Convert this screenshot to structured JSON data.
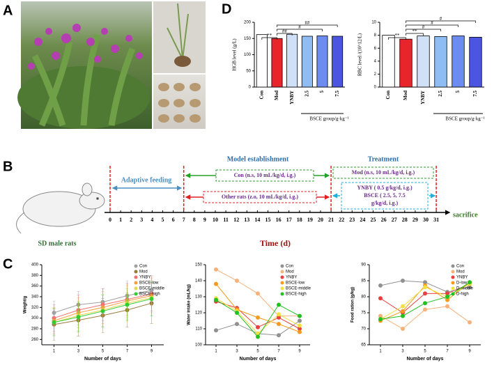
{
  "panel_labels": [
    "A",
    "B",
    "C",
    "D"
  ],
  "timeline": {
    "ticks": [
      0,
      1,
      2,
      3,
      4,
      5,
      6,
      7,
      8,
      9,
      10,
      11,
      12,
      13,
      14,
      15,
      16,
      17,
      18,
      19,
      20,
      21,
      22,
      23,
      24,
      25,
      26,
      27,
      28,
      29,
      30,
      31
    ],
    "axis_label": "Time (d)",
    "end_label": "sacrifice",
    "subject": "SD male rats",
    "adaptive": "Adaptive feeding",
    "model": "Model establishment",
    "treatment": "Treatment",
    "con": "Con (n.s, 10 mL/kg/d, i.g.)",
    "other": "Other rats (z.o, 10 mL/kg/d, i.g.)",
    "mod": "Mod (n.s, 10 mL/kg/d, i.g.)",
    "treatment_lines": [
      "YNBY ( 0.5 g/kg/d, i.g.)",
      "BSCE ( 2.5, 5, 7.5",
      "g/kg/d, i.g.)"
    ]
  },
  "chart_data": [
    {
      "type": "bar",
      "ylabel": "HGB level (g/L)",
      "group_label": "BSCE group/g·kg⁻¹",
      "categories": [
        "Con",
        "Mod",
        "YNBY",
        "2.5",
        "5",
        "7.5"
      ],
      "values": [
        162,
        150,
        163,
        157,
        158,
        157
      ],
      "colors": [
        "#ffffff",
        "#e8252a",
        "#cfe0f7",
        "#8fbcf2",
        "#6d8cf0",
        "#4b55e0"
      ],
      "ylim": [
        0,
        200
      ],
      "yticks": [
        0,
        50,
        100,
        150,
        200
      ],
      "annotations": [
        "**",
        "##",
        "#",
        "##"
      ]
    },
    {
      "type": "bar",
      "ylabel": "RBC level /(10^12/L)",
      "group_label": "BSCE group/g·kg⁻¹",
      "categories": [
        "Con",
        "Mod",
        "YNBY",
        "2.5",
        "5",
        "7.5"
      ],
      "values": [
        8.0,
        7.4,
        7.9,
        7.8,
        7.9,
        7.7
      ],
      "colors": [
        "#ffffff",
        "#e8252a",
        "#cfe0f7",
        "#8fbcf2",
        "#6d8cf0",
        "#4b55e0"
      ],
      "ylim": [
        0,
        10
      ],
      "yticks": [
        0,
        2,
        4,
        6,
        8,
        10
      ],
      "annotations": [
        "**",
        "**",
        "#",
        "#",
        "#"
      ]
    },
    {
      "type": "line",
      "ylabel": "Weight/g",
      "xlabel": "Number of days",
      "x": [
        1,
        3,
        5,
        7,
        9
      ],
      "xlim": [
        0,
        10
      ],
      "xticks": [
        1,
        3,
        5,
        7,
        9
      ],
      "ylim": [
        250,
        400
      ],
      "yticks": [
        260,
        280,
        300,
        320,
        340,
        360,
        380,
        400
      ],
      "series": [
        {
          "name": "Con",
          "color": "#a0a0a0",
          "values": [
            310,
            325,
            330,
            342,
            352
          ],
          "errors": [
            22,
            25,
            25,
            28,
            28
          ]
        },
        {
          "name": "Mod",
          "color": "#9b7b3a",
          "values": [
            288,
            296,
            305,
            315,
            328
          ],
          "errors": [
            30,
            30,
            32,
            32,
            38
          ]
        },
        {
          "name": "YNBY",
          "color": "#f07070",
          "values": [
            300,
            315,
            325,
            335,
            345
          ],
          "errors": [
            25,
            28,
            30,
            30,
            32
          ]
        },
        {
          "name": "BSCE-low",
          "color": "#f5a040",
          "values": [
            295,
            310,
            320,
            332,
            342
          ],
          "errors": [
            25,
            28,
            30,
            30,
            32
          ]
        },
        {
          "name": "BSCE-middle",
          "color": "#e8d850",
          "values": [
            292,
            305,
            315,
            328,
            338
          ],
          "errors": [
            25,
            28,
            30,
            30,
            32
          ]
        },
        {
          "name": "BSCE-high",
          "color": "#30cc30",
          "values": [
            292,
            302,
            313,
            325,
            336
          ],
          "errors": [
            25,
            28,
            30,
            30,
            32
          ]
        }
      ]
    },
    {
      "type": "line",
      "ylabel": "Water intake (mL/kg)",
      "xlabel": "Number of days",
      "x": [
        1,
        3,
        5,
        7,
        9
      ],
      "xlim": [
        0,
        10
      ],
      "xticks": [
        1,
        3,
        5,
        7,
        9
      ],
      "ylim": [
        100,
        150
      ],
      "yticks": [
        100,
        110,
        120,
        130,
        140,
        150
      ],
      "series": [
        {
          "name": "Con",
          "color": "#909090",
          "values": [
            109,
            113,
            107,
            106,
            115
          ]
        },
        {
          "name": "Mod",
          "color": "#f5b27a",
          "values": [
            147,
            140,
            132,
            118,
            118
          ]
        },
        {
          "name": "YNBY",
          "color": "#e84040",
          "values": [
            127,
            123,
            111,
            117,
            110
          ]
        },
        {
          "name": "BSCE-low",
          "color": "#f59a20",
          "values": [
            138,
            122,
            117,
            113,
            108
          ]
        },
        {
          "name": "BSCE-middle",
          "color": "#f0e040",
          "values": [
            129,
            121,
            107,
            119,
            112
          ]
        },
        {
          "name": "BSCE-high",
          "color": "#22c022",
          "values": [
            128,
            120,
            105,
            125,
            118
          ]
        }
      ]
    },
    {
      "type": "line",
      "ylabel": "Food ration (g/kg)",
      "xlabel": "Number of days",
      "x": [
        1,
        3,
        5,
        7,
        9
      ],
      "xlim": [
        0,
        10
      ],
      "xticks": [
        1,
        3,
        5,
        7,
        9
      ],
      "ylim": [
        65,
        90
      ],
      "yticks": [
        65,
        70,
        75,
        80,
        85,
        90
      ],
      "series": [
        {
          "name": "Con",
          "color": "#909090",
          "values": [
            83.5,
            85,
            84.5,
            81.5,
            83
          ]
        },
        {
          "name": "Mod",
          "color": "#f5b27a",
          "values": [
            74,
            70,
            76,
            77,
            72
          ]
        },
        {
          "name": "YNBY",
          "color": "#e84040",
          "values": [
            79.5,
            75,
            81,
            81,
            84
          ]
        },
        {
          "name": "D-low",
          "color": "#f59a20",
          "values": [
            72.5,
            75.5,
            83.5,
            79,
            84.5
          ]
        },
        {
          "name": "D-middle",
          "color": "#f0e040",
          "values": [
            73,
            77,
            83,
            80,
            84
          ]
        },
        {
          "name": "D-high",
          "color": "#22c022",
          "values": [
            73,
            74,
            78,
            80,
            84.5
          ]
        }
      ]
    }
  ]
}
